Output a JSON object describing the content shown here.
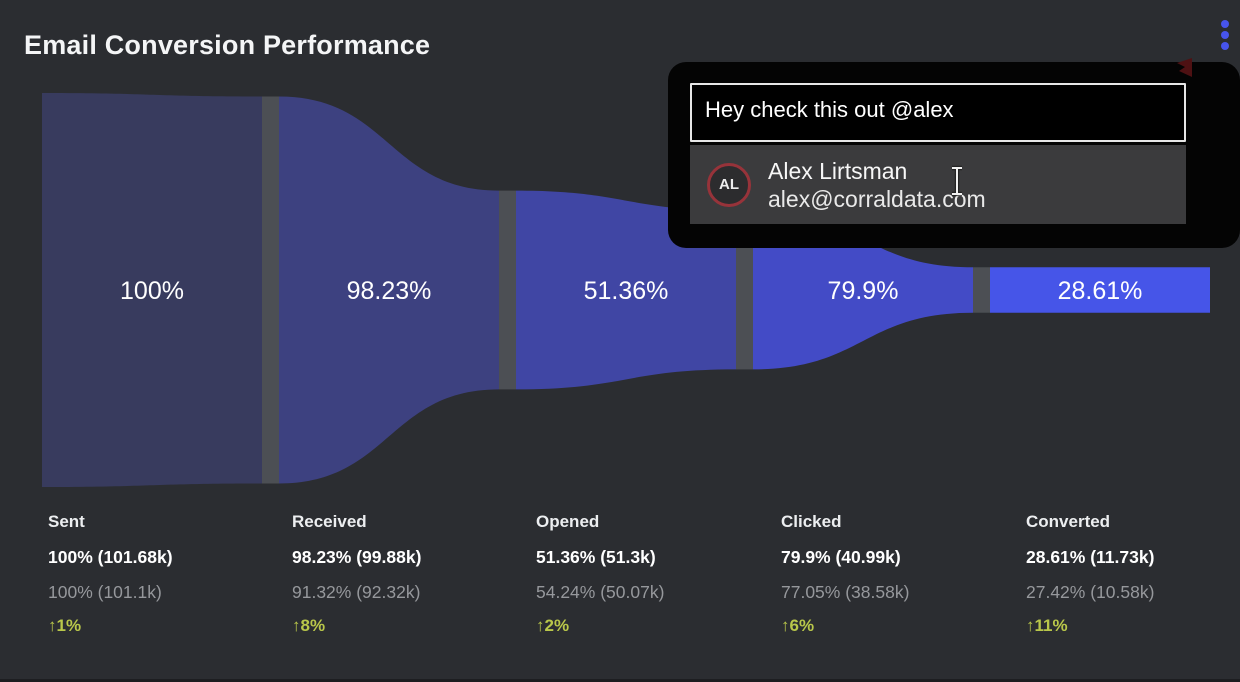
{
  "header": {
    "title": "Email Conversion Performance"
  },
  "colors": {
    "background": "#2b2d31",
    "divider": "#4c4f54",
    "funnel_label": "#ffffff",
    "delta_text": "#b9c74a",
    "previous_text": "#96989c",
    "kebab_dots": "#4754ec",
    "avatar_ring": "#97333a",
    "popup_background": "#040404",
    "suggestion_row_background": "#3b3b3d"
  },
  "chart_data": {
    "type": "funnel",
    "title": "Email Conversion Performance",
    "unit": "k",
    "legend_position": "none",
    "grid": false,
    "stages": [
      {
        "name": "Sent",
        "count_k": 101.68,
        "conversion_pct": 100,
        "conversion_label": "100%",
        "current_label": "100% (101.68k)",
        "previous_count_k": 101.1,
        "previous_pct": 100,
        "previous_label": "100% (101.1k)",
        "delta_pct": 1,
        "delta_label": "↑1%",
        "fraction_of_max": 1.0,
        "color": "#383b5e"
      },
      {
        "name": "Received",
        "count_k": 99.88,
        "conversion_pct": 98.23,
        "conversion_label": "98.23%",
        "current_label": "98.23% (99.88k)",
        "previous_count_k": 92.32,
        "previous_pct": 91.32,
        "previous_label": "91.32% (92.32k)",
        "delta_pct": 8,
        "delta_label": "↑8%",
        "fraction_of_max": 0.9823,
        "color": "#3d4180"
      },
      {
        "name": "Opened",
        "count_k": 51.3,
        "conversion_pct": 51.36,
        "conversion_label": "51.36%",
        "current_label": "51.36% (51.3k)",
        "previous_count_k": 50.07,
        "previous_pct": 54.24,
        "previous_label": "54.24% (50.07k)",
        "delta_pct": 2,
        "delta_label": "↑2%",
        "fraction_of_max": 0.5045,
        "color": "#4046a4"
      },
      {
        "name": "Clicked",
        "count_k": 40.99,
        "conversion_pct": 79.9,
        "conversion_label": "79.9%",
        "current_label": "79.9% (40.99k)",
        "previous_count_k": 38.58,
        "previous_pct": 77.05,
        "previous_label": "77.05% (38.58k)",
        "delta_pct": 6,
        "delta_label": "↑6%",
        "fraction_of_max": 0.4031,
        "color": "#434bc6"
      },
      {
        "name": "Converted",
        "count_k": 11.73,
        "conversion_pct": 28.61,
        "conversion_label": "28.61%",
        "current_label": "28.61% (11.73k)",
        "previous_count_k": 10.58,
        "previous_pct": 27.42,
        "previous_label": "27.42% (10.58k)",
        "delta_pct": 11,
        "delta_label": "↑11%",
        "fraction_of_max": 0.1154,
        "color": "#4655e8"
      }
    ]
  },
  "popup": {
    "input_value": "Hey check this out @alex",
    "suggestion": {
      "initials": "AL",
      "name": "Alex Lirtsman",
      "email": "alex@corraldata.com"
    }
  }
}
